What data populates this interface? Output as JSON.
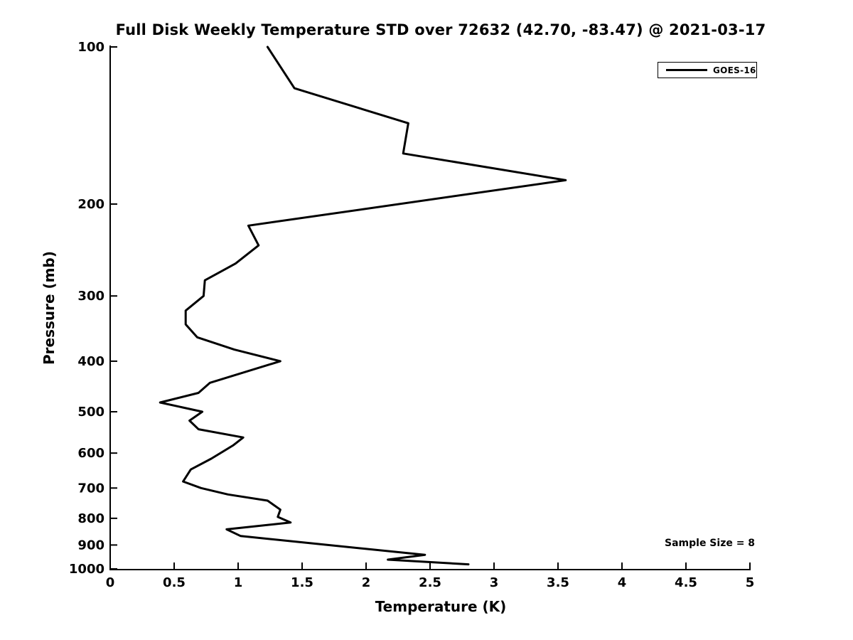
{
  "chart_data": {
    "type": "line",
    "title": "Full Disk Weekly Temperature STD over 72632 (42.70, -83.47) @ 2021-03-17",
    "xlabel": "Temperature (K)",
    "ylabel": "Pressure (mb)",
    "xlim": [
      0,
      5
    ],
    "ylim": [
      100,
      1000
    ],
    "yscale": "log",
    "y_inverted": true,
    "grid": false,
    "xticks": [
      0,
      0.5,
      1,
      1.5,
      2,
      2.5,
      3,
      3.5,
      4,
      4.5,
      5
    ],
    "xtick_labels": [
      "0",
      "0.5",
      "1",
      "1.5",
      "2",
      "2.5",
      "3",
      "3.5",
      "4",
      "4.5",
      "5"
    ],
    "yticks": [
      100,
      200,
      300,
      400,
      500,
      600,
      700,
      800,
      900,
      1000
    ],
    "ytick_labels": [
      "100",
      "200",
      "300",
      "400",
      "500",
      "600",
      "700",
      "800",
      "900",
      "1000"
    ],
    "legend": {
      "position": "top-right",
      "entries": [
        {
          "label": "GOES-16",
          "line_color": "#000000"
        }
      ]
    },
    "annotation": "Sample Size = 8",
    "series": [
      {
        "name": "GOES-16",
        "color": "#000000",
        "points_pressure_mb_temperature_k": [
          [
            100,
            1.23
          ],
          [
            120,
            1.44
          ],
          [
            140,
            2.33
          ],
          [
            160,
            2.29
          ],
          [
            180,
            3.56
          ],
          [
            220,
            1.08
          ],
          [
            240,
            1.16
          ],
          [
            260,
            0.98
          ],
          [
            280,
            0.74
          ],
          [
            300,
            0.73
          ],
          [
            320,
            0.59
          ],
          [
            340,
            0.59
          ],
          [
            360,
            0.68
          ],
          [
            380,
            0.97
          ],
          [
            400,
            1.33
          ],
          [
            440,
            0.78
          ],
          [
            460,
            0.69
          ],
          [
            480,
            0.39
          ],
          [
            500,
            0.72
          ],
          [
            520,
            0.62
          ],
          [
            540,
            0.69
          ],
          [
            560,
            1.04
          ],
          [
            580,
            0.96
          ],
          [
            615,
            0.79
          ],
          [
            645,
            0.63
          ],
          [
            680,
            0.57
          ],
          [
            700,
            0.71
          ],
          [
            720,
            0.92
          ],
          [
            740,
            1.23
          ],
          [
            770,
            1.33
          ],
          [
            795,
            1.31
          ],
          [
            815,
            1.41
          ],
          [
            840,
            0.91
          ],
          [
            865,
            1.02
          ],
          [
            940,
            2.46
          ],
          [
            960,
            2.17
          ],
          [
            980,
            2.8
          ]
        ]
      }
    ]
  },
  "colors": {
    "line": "#000000",
    "text": "#000000",
    "background": "#ffffff"
  }
}
